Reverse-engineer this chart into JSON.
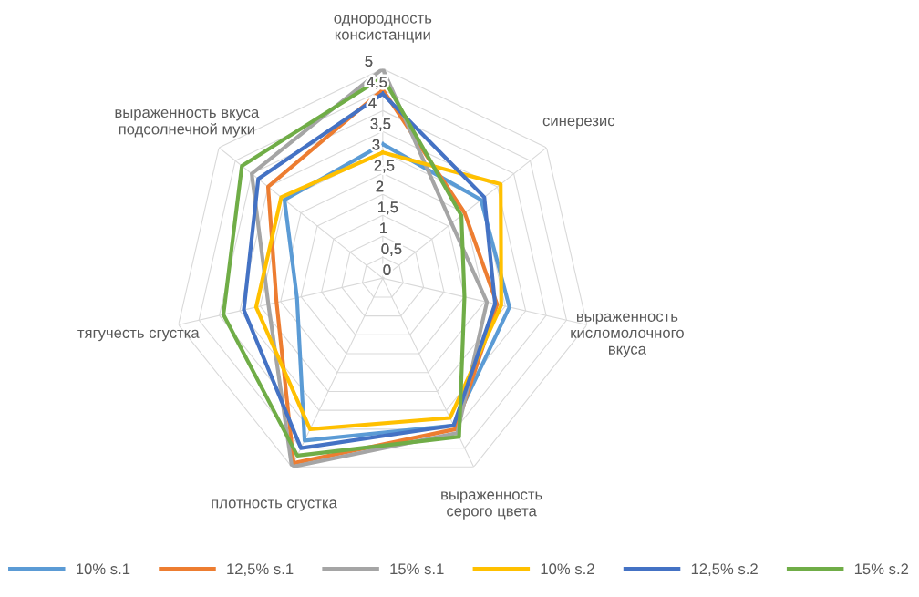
{
  "chart_data": {
    "type": "radar",
    "categories": [
      "однородность\nконсистанции",
      "синерезис",
      "выраженность\nкисломолочного\nвкуса",
      "выраженность\nсерого цвета",
      "плотность сгустка",
      "тягучесть сгустка",
      "выраженность вкуса\nподсолнечной муки"
    ],
    "series": [
      {
        "name": "10% s.1",
        "color": "#5b9bd5",
        "values": [
          3.2,
          3.0,
          3.1,
          3.9,
          4.3,
          2.1,
          3.0
        ]
      },
      {
        "name": "12,5% s.1",
        "color": "#ed7d31",
        "values": [
          4.5,
          2.5,
          2.8,
          4.0,
          4.9,
          2.6,
          3.5
        ]
      },
      {
        "name": "15% s.1",
        "color": "#a5a5a5",
        "values": [
          5.0,
          2.1,
          2.55,
          4.1,
          5.0,
          2.8,
          4.0
        ]
      },
      {
        "name": "10% s.2",
        "color": "#ffc000",
        "values": [
          3.0,
          3.6,
          2.9,
          3.7,
          4.0,
          3.1,
          3.1
        ]
      },
      {
        "name": "12,5% s.2",
        "color": "#4472c4",
        "values": [
          4.4,
          3.1,
          2.75,
          3.9,
          4.5,
          3.4,
          3.8
        ]
      },
      {
        "name": "15% s.2",
        "color": "#70ad47",
        "values": [
          4.8,
          2.4,
          2.0,
          4.2,
          4.7,
          3.9,
          4.3
        ]
      }
    ],
    "ylim": [
      0,
      5
    ],
    "yticks": [
      0,
      {
        "value": 0.5,
        "label": "0,5"
      },
      1,
      {
        "value": 1.5,
        "label": "1,5"
      },
      2,
      {
        "value": 2.5,
        "label": "2,5"
      },
      3,
      {
        "value": 3.5,
        "label": "3,5"
      },
      4,
      {
        "value": 4.5,
        "label": "4,5"
      },
      5
    ],
    "grid": true,
    "legend": "bottom",
    "marker": "none",
    "line_style": "solid"
  }
}
